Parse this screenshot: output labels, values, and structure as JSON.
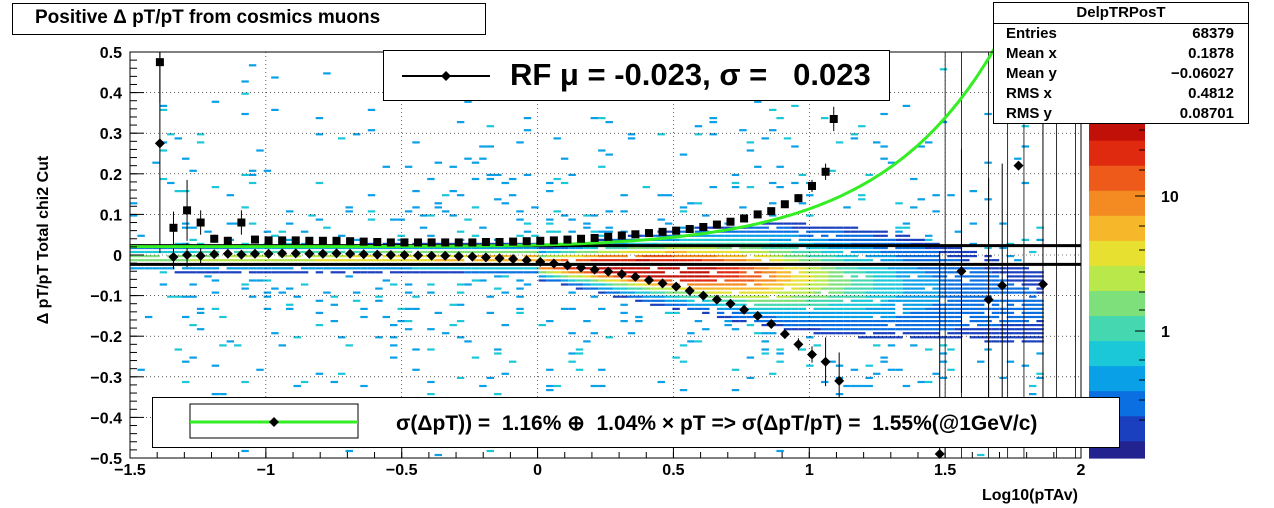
{
  "title": "Positive Δ p_T/p_T from cosmics muons",
  "title_display": "Positive Δ pT/pT from cosmics muons",
  "stats": {
    "name": "DelpTRPosT",
    "rows": [
      {
        "label": "Entries",
        "value": "68379"
      },
      {
        "label": "Mean x",
        "value": "0.1878"
      },
      {
        "label": "Mean y",
        "value": "−0.06027"
      },
      {
        "label": "RMS x",
        "value": "0.4812"
      },
      {
        "label": "RMS y",
        "value": "0.08701"
      }
    ]
  },
  "legend_rf": "RF μ = -0.023, σ =   0.023",
  "legend_fit": "σ(ΔpT)) =  1.16% ⊕  1.04% × pT => σ(ΔpT/pT) =  1.55%(@1GeV/c)",
  "colors": {
    "fit": "#33ee22",
    "frame": "#000000",
    "markers": "#000000"
  },
  "chart_data": {
    "type": "heatmap",
    "xlabel": "Log10(pTAv)",
    "ylabel": "Δ pT/pT   Total chi2 Cut",
    "xlim": [
      -1.5,
      2.0
    ],
    "ylim": [
      -0.5,
      0.5
    ],
    "x_ticks": [
      "−1.5",
      "−1",
      "−0.5",
      "0",
      "0.5",
      "1",
      "1.5",
      "2"
    ],
    "y_ticks": [
      "0.5",
      "0.4",
      "0.3",
      "0.2",
      "0.1",
      "0",
      "−0.1",
      "−0.2",
      "−0.3",
      "−0.4",
      "−0.5"
    ],
    "z_scale": "log",
    "z_ticks": [
      "10",
      "1"
    ],
    "grid": true,
    "hlines": [
      0.023,
      -0.023
    ],
    "mean_profile": {
      "name": "mean",
      "x": [
        -1.39,
        -1.34,
        -1.29,
        -1.24,
        -1.19,
        -1.14,
        -1.09,
        -1.04,
        -0.99,
        -0.94,
        -0.89,
        -0.84,
        -0.79,
        -0.74,
        -0.69,
        -0.64,
        -0.59,
        -0.54,
        -0.49,
        -0.44,
        -0.39,
        -0.34,
        -0.29,
        -0.24,
        -0.19,
        -0.14,
        -0.09,
        -0.04,
        0.01,
        0.06,
        0.11,
        0.16,
        0.21,
        0.26,
        0.31,
        0.36,
        0.41,
        0.46,
        0.51,
        0.56,
        0.61,
        0.66,
        0.71,
        0.76,
        0.81,
        0.86,
        0.91,
        0.96,
        1.01,
        1.06,
        1.11,
        1.48,
        1.56,
        1.66,
        1.71,
        1.86
      ],
      "y": [
        0.275,
        -0.005,
        0.0,
        -0.002,
        0.002,
        0.003,
        0.001,
        0.003,
        0.003,
        0.004,
        0.004,
        0.003,
        0.003,
        0.004,
        0.003,
        0.002,
        0.001,
        0.0,
        0.0,
        -0.001,
        -0.002,
        -0.002,
        -0.003,
        -0.004,
        -0.006,
        -0.008,
        -0.01,
        -0.013,
        -0.017,
        -0.021,
        -0.026,
        -0.031,
        -0.036,
        -0.041,
        -0.047,
        -0.054,
        -0.062,
        -0.07,
        -0.078,
        -0.088,
        -0.1,
        -0.11,
        -0.12,
        -0.135,
        -0.15,
        -0.17,
        -0.195,
        -0.22,
        -0.245,
        -0.263,
        -0.31,
        -0.49,
        -0.04,
        -0.11,
        -0.075,
        -0.072
      ],
      "yerr": [
        0.27,
        0.03,
        0.03,
        0.02,
        0.01,
        0.006,
        0.005,
        0.004,
        0.003,
        0.003,
        0.003,
        0.003,
        0.003,
        0.003,
        0.003,
        0.003,
        0.003,
        0.003,
        0.003,
        0.003,
        0.003,
        0.003,
        0.003,
        0.003,
        0.003,
        0.003,
        0.003,
        0.003,
        0.003,
        0.003,
        0.003,
        0.003,
        0.003,
        0.003,
        0.003,
        0.003,
        0.003,
        0.003,
        0.003,
        0.003,
        0.004,
        0.004,
        0.005,
        0.006,
        0.006,
        0.008,
        0.01,
        0.015,
        0.02,
        0.06,
        0.07,
        0.5,
        0.3,
        0.3,
        0.3,
        0.4
      ]
    },
    "rms_profile": {
      "name": "rms",
      "x": [
        -1.39,
        -1.34,
        -1.29,
        -1.24,
        -1.19,
        -1.14,
        -1.09,
        -1.04,
        -0.99,
        -0.94,
        -0.89,
        -0.84,
        -0.79,
        -0.74,
        -0.69,
        -0.64,
        -0.59,
        -0.54,
        -0.49,
        -0.44,
        -0.39,
        -0.34,
        -0.29,
        -0.24,
        -0.19,
        -0.14,
        -0.09,
        -0.04,
        0.01,
        0.06,
        0.11,
        0.16,
        0.21,
        0.26,
        0.31,
        0.36,
        0.41,
        0.46,
        0.51,
        0.56,
        0.61,
        0.66,
        0.71,
        0.76,
        0.81,
        0.86,
        0.91,
        0.96,
        1.01,
        1.06
      ],
      "y": [
        0.475,
        0.067,
        0.11,
        0.08,
        0.04,
        0.035,
        0.08,
        0.038,
        0.036,
        0.036,
        0.036,
        0.035,
        0.035,
        0.035,
        0.034,
        0.033,
        0.032,
        0.031,
        0.031,
        0.031,
        0.031,
        0.031,
        0.031,
        0.031,
        0.032,
        0.032,
        0.033,
        0.034,
        0.035,
        0.036,
        0.038,
        0.04,
        0.042,
        0.045,
        0.048,
        0.051,
        0.054,
        0.057,
        0.06,
        0.064,
        0.069,
        0.075,
        0.082,
        0.09,
        0.1,
        0.108,
        0.125,
        0.14,
        0.17,
        0.205
      ],
      "yerr": [
        0.1,
        0.04,
        0.075,
        0.03,
        0.01,
        0.01,
        0.03,
        0.005,
        0.003,
        0.003,
        0.003,
        0.003,
        0.003,
        0.003,
        0.003,
        0.003,
        0.003,
        0.003,
        0.003,
        0.003,
        0.003,
        0.003,
        0.003,
        0.003,
        0.003,
        0.003,
        0.003,
        0.003,
        0.003,
        0.003,
        0.003,
        0.003,
        0.003,
        0.003,
        0.003,
        0.003,
        0.003,
        0.003,
        0.003,
        0.003,
        0.003,
        0.003,
        0.004,
        0.004,
        0.005,
        0.006,
        0.008,
        0.01,
        0.015,
        0.02
      ]
    },
    "rms_extra": {
      "x": [
        1.09
      ],
      "y": [
        0.335
      ],
      "yerr": [
        0.03
      ]
    },
    "fit_curve": {
      "name": "fit",
      "note_formula": "sqrt(a^2 + (b*pT)^2)",
      "a": 0.0116,
      "b": 0.0104
    }
  }
}
